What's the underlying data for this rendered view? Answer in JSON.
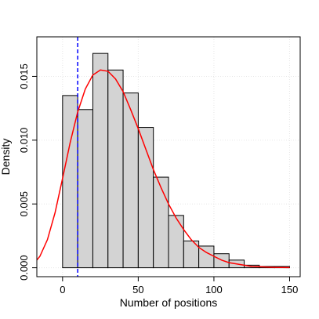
{
  "chart_data": {
    "type": "histogram",
    "title": "",
    "xlabel": "Number of positions",
    "ylabel": "Density",
    "xlim": [
      -17,
      157
    ],
    "ylim": [
      -0.0007,
      0.0181
    ],
    "x_ticks": [
      0,
      50,
      100,
      150
    ],
    "y_ticks": [
      0.0,
      0.005,
      0.01,
      0.015
    ],
    "x_tick_labels": [
      "0",
      "50",
      "100",
      "150"
    ],
    "y_tick_labels": [
      "0.000",
      "0.005",
      "0.010",
      "0.015"
    ],
    "grid": true,
    "legend": "none",
    "bins": {
      "edges": [
        0,
        10,
        20,
        30,
        40,
        50,
        60,
        70,
        80,
        90,
        100,
        110,
        120,
        130,
        140,
        150
      ],
      "values": [
        0.0135,
        0.0124,
        0.0168,
        0.0155,
        0.0137,
        0.011,
        0.0071,
        0.0041,
        0.0021,
        0.0017,
        0.0011,
        0.0006,
        0.0002,
        0.0001,
        0.0001
      ],
      "fill": "#d3d3d3",
      "edge_color": "#000000"
    },
    "density_curve": {
      "color": "#ff0000",
      "x": [
        -17,
        -15,
        -10,
        -5,
        0,
        5,
        10,
        15,
        20,
        25,
        30,
        35,
        40,
        45,
        50,
        55,
        60,
        65,
        70,
        75,
        80,
        85,
        90,
        95,
        100,
        105,
        110,
        115,
        120,
        125,
        130,
        135,
        140,
        145,
        150
      ],
      "y": [
        0.0006,
        0.0009,
        0.0022,
        0.0043,
        0.007,
        0.0098,
        0.0122,
        0.014,
        0.0151,
        0.0155,
        0.0154,
        0.0148,
        0.0138,
        0.0124,
        0.0109,
        0.0093,
        0.0077,
        0.0063,
        0.005,
        0.0039,
        0.003,
        0.0022,
        0.0016,
        0.0012,
        0.0009,
        0.0006,
        0.0004,
        0.0003,
        0.0002,
        0.0001,
        8e-05,
        5e-05,
        3e-05,
        2e-05,
        1e-05
      ]
    },
    "vline": {
      "x": 10,
      "color": "#0000ff",
      "style": "dashed"
    }
  }
}
